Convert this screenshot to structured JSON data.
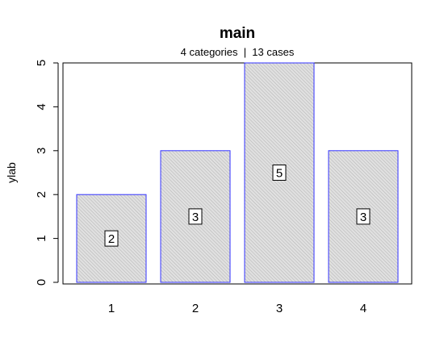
{
  "chart_data": {
    "type": "bar",
    "title": "main",
    "subtitle": "4 categories  |  13 cases",
    "xlabel": "",
    "ylabel": "ylab",
    "categories": [
      "1",
      "2",
      "3",
      "4"
    ],
    "values": [
      2,
      3,
      5,
      3
    ],
    "data_labels": [
      "2",
      "3",
      "5",
      "3"
    ],
    "ylim": [
      0,
      5
    ],
    "yticks": [
      "0",
      "1",
      "2",
      "3",
      "4",
      "5"
    ],
    "grid": false,
    "bar_fill": "#d9d9d9",
    "bar_hatch": "#a6a6a6",
    "bar_border": "#3333ff"
  }
}
